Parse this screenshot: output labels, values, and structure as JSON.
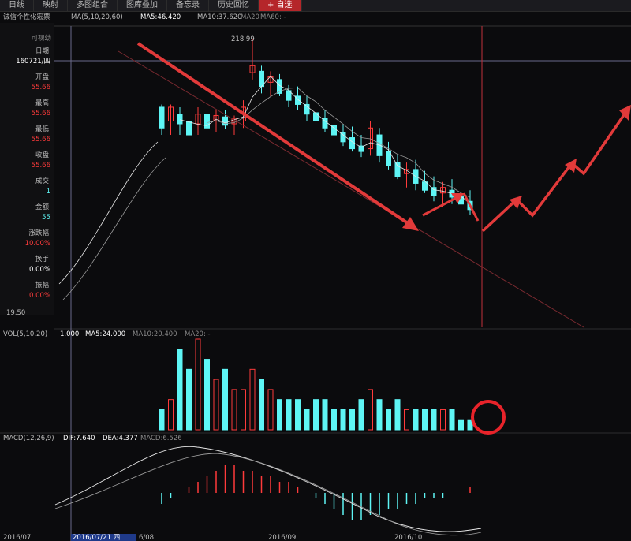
{
  "tabs": [
    {
      "label": "日线",
      "active": false
    },
    {
      "label": "映射",
      "active": false
    },
    {
      "label": "多图组合",
      "active": false
    },
    {
      "label": "图库叠加",
      "active": false
    },
    {
      "label": "备忘录",
      "active": false
    },
    {
      "label": "历史回忆",
      "active": false
    },
    {
      "label": "+ 自选",
      "active": true
    }
  ],
  "header": {
    "stock_name": "诚信个性化宏票",
    "ma_label": "MA(5,10,20,60)",
    "ma5": "MA5:46.420",
    "ma10": "MA10:37.620",
    "ma20": "MA20",
    "ma60": "MA60: -"
  },
  "sidebar": {
    "top_label": "可视幼",
    "items": [
      {
        "label": "日期",
        "value": "160721/四"
      },
      {
        "label": "开盘",
        "value": "55.66"
      },
      {
        "label": "最高",
        "value": "55.66"
      },
      {
        "label": "最低",
        "value": "55.66"
      },
      {
        "label": "收盘",
        "value": "55.66"
      },
      {
        "label": "成交",
        "value": "1"
      },
      {
        "label": "金额",
        "value": "55"
      },
      {
        "label": "涨跌幅",
        "value": "10.00%"
      },
      {
        "label": "换手",
        "value": "0.00%"
      },
      {
        "label": "振幅",
        "value": "0.00%"
      }
    ]
  },
  "annotations": {
    "high_price": "218.99",
    "low_price": "19.50"
  },
  "volume_header": {
    "label": "VOL(5,10,20)",
    "value": "1.000",
    "ma5": "MA5:24.000",
    "ma10": "MA10:20.400",
    "ma20": "MA20: -"
  },
  "macd_header": {
    "label": "MACD(12,26,9)",
    "dif": "DIF:7.640",
    "dea": "DEA:4.377",
    "macd": "MACD:6.526"
  },
  "xaxis": {
    "labels": [
      "2016/07",
      "2016/07/21 四",
      "6/08",
      "2016/09",
      "2016/10"
    ]
  },
  "colors": {
    "up": "#ff3b3b",
    "down": "#5ef5f5",
    "trend_arrow": "#e23a3a",
    "ma_white": "#e8e8e8",
    "ma_gray": "#9a9a9a",
    "circle": "#e8232a"
  },
  "chart_data": {
    "type": "candlestick",
    "price_range": [
      19.5,
      218.99
    ],
    "candles": [
      {
        "o": 170,
        "h": 172,
        "l": 150,
        "c": 155
      },
      {
        "o": 160,
        "h": 172,
        "l": 150,
        "c": 170
      },
      {
        "o": 165,
        "h": 170,
        "l": 150,
        "c": 158
      },
      {
        "o": 160,
        "h": 168,
        "l": 145,
        "c": 150
      },
      {
        "o": 158,
        "h": 170,
        "l": 150,
        "c": 165
      },
      {
        "o": 165,
        "h": 172,
        "l": 150,
        "c": 155
      },
      {
        "o": 160,
        "h": 168,
        "l": 152,
        "c": 164
      },
      {
        "o": 163,
        "h": 168,
        "l": 154,
        "c": 157
      },
      {
        "o": 158,
        "h": 164,
        "l": 150,
        "c": 162
      },
      {
        "o": 160,
        "h": 175,
        "l": 155,
        "c": 170
      },
      {
        "o": 195,
        "h": 218.99,
        "l": 190,
        "c": 200
      },
      {
        "o": 196,
        "h": 200,
        "l": 180,
        "c": 185
      },
      {
        "o": 188,
        "h": 196,
        "l": 178,
        "c": 192
      },
      {
        "o": 190,
        "h": 194,
        "l": 178,
        "c": 180
      },
      {
        "o": 182,
        "h": 186,
        "l": 170,
        "c": 175
      },
      {
        "o": 178,
        "h": 185,
        "l": 168,
        "c": 172
      },
      {
        "o": 172,
        "h": 178,
        "l": 160,
        "c": 165
      },
      {
        "o": 166,
        "h": 172,
        "l": 158,
        "c": 160
      },
      {
        "o": 162,
        "h": 168,
        "l": 152,
        "c": 155
      },
      {
        "o": 157,
        "h": 164,
        "l": 148,
        "c": 150
      },
      {
        "o": 152,
        "h": 158,
        "l": 142,
        "c": 145
      },
      {
        "o": 148,
        "h": 156,
        "l": 138,
        "c": 140
      },
      {
        "o": 142,
        "h": 150,
        "l": 134,
        "c": 138
      },
      {
        "o": 140,
        "h": 160,
        "l": 135,
        "c": 155
      },
      {
        "o": 150,
        "h": 155,
        "l": 130,
        "c": 135
      },
      {
        "o": 138,
        "h": 145,
        "l": 125,
        "c": 128
      },
      {
        "o": 130,
        "h": 136,
        "l": 118,
        "c": 120
      },
      {
        "o": 122,
        "h": 130,
        "l": 112,
        "c": 125
      },
      {
        "o": 125,
        "h": 132,
        "l": 110,
        "c": 115
      },
      {
        "o": 116,
        "h": 124,
        "l": 108,
        "c": 110
      },
      {
        "o": 112,
        "h": 120,
        "l": 102,
        "c": 106
      },
      {
        "o": 108,
        "h": 116,
        "l": 98,
        "c": 112
      },
      {
        "o": 110,
        "h": 118,
        "l": 100,
        "c": 105
      },
      {
        "o": 106,
        "h": 114,
        "l": 94,
        "c": 100
      },
      {
        "o": 102,
        "h": 110,
        "l": 92,
        "c": 96
      }
    ],
    "volume": [
      2,
      3,
      8,
      6,
      9,
      7,
      5,
      6,
      4,
      4,
      6,
      5,
      4,
      3,
      3,
      3,
      2,
      3,
      3,
      2,
      2,
      2,
      3,
      4,
      3,
      2,
      3,
      2,
      2,
      2,
      2,
      2,
      2,
      1,
      1
    ],
    "macd_hist": [
      -2,
      -1,
      0,
      1,
      2,
      3,
      4,
      5,
      5,
      4,
      4,
      3,
      3,
      2,
      2,
      1,
      0,
      -1,
      -2,
      -3,
      -4,
      -5,
      -5,
      -4,
      -4,
      -3,
      -3,
      -2,
      -2,
      -1,
      -1,
      -1,
      0,
      0,
      1
    ]
  }
}
